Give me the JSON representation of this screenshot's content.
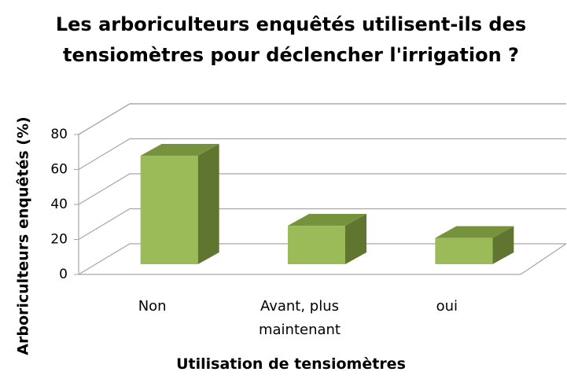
{
  "chart_data": {
    "type": "bar3d",
    "title": "Les arboriculteurs enquêtés utilisent-ils des tensiomètres pour déclencher l'irrigation ?",
    "x_label": "Utilisation de tensiomètres",
    "y_label": "Arboriculteurs enquêtés (%)",
    "categories": [
      "Non",
      "Avant, plus maintenant",
      "oui"
    ],
    "values": [
      62,
      22,
      15
    ],
    "color": "#9bbb59",
    "ylim": [
      0,
      80
    ],
    "yticks": [
      0,
      20,
      40,
      60,
      80
    ],
    "grid": true
  }
}
